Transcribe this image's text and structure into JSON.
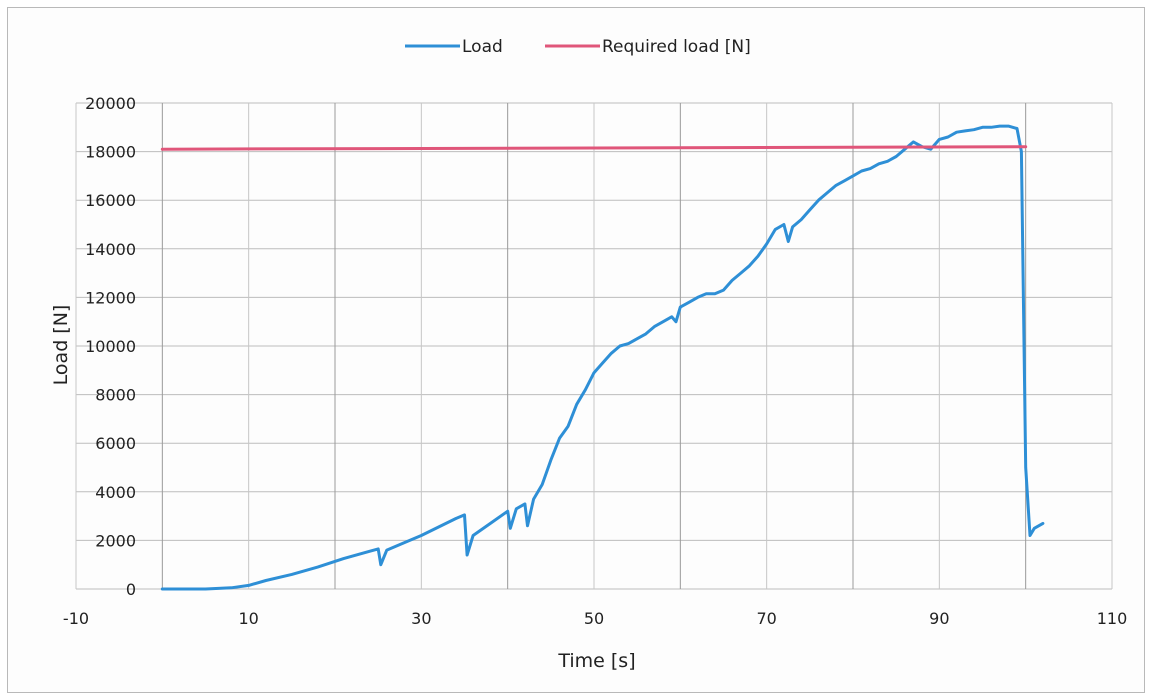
{
  "chart_data": {
    "type": "line",
    "xlabel": "Time [s]",
    "ylabel": "Load [N]",
    "xlim": [
      -10,
      110
    ],
    "ylim": [
      0,
      20000
    ],
    "x_ticks": [
      -10,
      10,
      30,
      50,
      70,
      90,
      110
    ],
    "y_ticks": [
      0,
      2000,
      4000,
      6000,
      8000,
      10000,
      12000,
      14000,
      16000,
      18000,
      20000
    ],
    "x_grid_step": 10,
    "grid": true,
    "legend_position": "top",
    "series": [
      {
        "name": "Load",
        "color": "#2e8fd6",
        "x": [
          0,
          5,
          8,
          10,
          12,
          15,
          18,
          21,
          24,
          25,
          25.3,
          26,
          28,
          30,
          32,
          34,
          35,
          35.3,
          36,
          38,
          40,
          40.3,
          41,
          42,
          42.3,
          43,
          44,
          45,
          46,
          47,
          48,
          49,
          50,
          51,
          52,
          53,
          54,
          55,
          56,
          57,
          58,
          59,
          59.5,
          60,
          61,
          62,
          63,
          64,
          65,
          66,
          67,
          68,
          69,
          70,
          71,
          72,
          72.5,
          73,
          74,
          75,
          76,
          77,
          78,
          79,
          80,
          81,
          82,
          83,
          84,
          85,
          86,
          87,
          88,
          89,
          90,
          91,
          92,
          93,
          94,
          95,
          96,
          97,
          98,
          99,
          99.5,
          100,
          100.5,
          101,
          102
        ],
        "y": [
          0,
          0,
          50,
          150,
          350,
          600,
          900,
          1250,
          1550,
          1650,
          1000,
          1600,
          1900,
          2200,
          2550,
          2900,
          3050,
          1400,
          2200,
          2700,
          3200,
          2500,
          3300,
          3500,
          2600,
          3700,
          4300,
          5300,
          6200,
          6700,
          7600,
          8200,
          8900,
          9300,
          9700,
          10000,
          10100,
          10300,
          10500,
          10800,
          11000,
          11200,
          11000,
          11600,
          11800,
          12000,
          12150,
          12150,
          12300,
          12700,
          13000,
          13300,
          13700,
          14200,
          14800,
          15000,
          14300,
          14900,
          15200,
          15600,
          16000,
          16300,
          16600,
          16800,
          17000,
          17200,
          17300,
          17500,
          17600,
          17800,
          18100,
          18400,
          18200,
          18100,
          18500,
          18600,
          18800,
          18850,
          18900,
          19000,
          19000,
          19050,
          19050,
          18950,
          18000,
          5000,
          2200,
          2500,
          2700
        ]
      },
      {
        "name": "Required load [N]",
        "color": "#e0567a",
        "x": [
          0,
          100
        ],
        "y": [
          18100,
          18200
        ]
      }
    ]
  }
}
